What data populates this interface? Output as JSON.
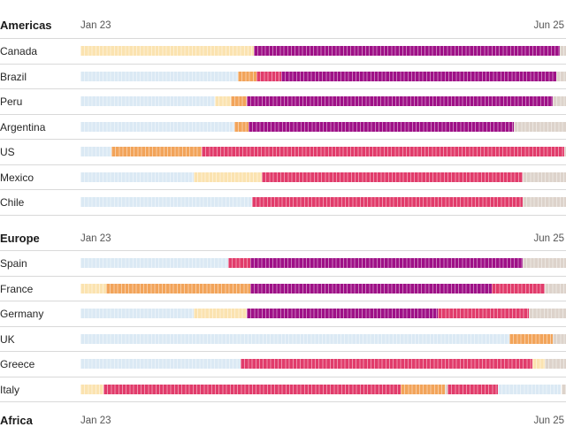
{
  "axis": {
    "start": "Jan 23",
    "end": "Jun 25"
  },
  "colors": {
    "blue": "#dbe9f4",
    "yellow": "#fbe3b0",
    "orange": "#f2a45a",
    "red": "#e13c6b",
    "purple": "#9e1187",
    "grey": "#ddd3cb"
  },
  "chart_data": {
    "type": "timeline",
    "periods": 30,
    "sections": [
      {
        "title": "Americas",
        "rows": [
          {
            "label": "Canada",
            "segments": [
              [
                "yellow",
                10.7
              ],
              [
                "purple",
                18.9
              ],
              [
                "grey",
                0.4
              ]
            ]
          },
          {
            "label": "Brazil",
            "segments": [
              [
                "blue",
                9.7
              ],
              [
                "orange",
                1.2
              ],
              [
                "red",
                1.5
              ],
              [
                "purple",
                17.0
              ],
              [
                "grey",
                0.6
              ]
            ]
          },
          {
            "label": "Peru",
            "segments": [
              [
                "blue",
                8.3
              ],
              [
                "yellow",
                1.0
              ],
              [
                "orange",
                1.0
              ],
              [
                "purple",
                18.9
              ],
              [
                "grey",
                0.8
              ]
            ]
          },
          {
            "label": "Argentina",
            "segments": [
              [
                "blue",
                9.5
              ],
              [
                "orange",
                0.9
              ],
              [
                "purple",
                16.4
              ],
              [
                "grey",
                3.2
              ]
            ]
          },
          {
            "label": "US",
            "segments": [
              [
                "blue",
                1.9
              ],
              [
                "orange",
                5.6
              ],
              [
                "red",
                22.4
              ],
              [
                "grey",
                0.1
              ]
            ]
          },
          {
            "label": "Mexico",
            "segments": [
              [
                "blue",
                7.0
              ],
              [
                "yellow",
                4.2
              ],
              [
                "red",
                16.1
              ],
              [
                "grey",
                2.7
              ]
            ]
          },
          {
            "label": "Chile",
            "segments": [
              [
                "blue",
                10.6
              ],
              [
                "red",
                16.7
              ],
              [
                "grey",
                2.7
              ]
            ]
          }
        ]
      },
      {
        "title": "Europe",
        "rows": [
          {
            "label": "Spain",
            "segments": [
              [
                "blue",
                9.1
              ],
              [
                "red",
                1.4
              ],
              [
                "purple",
                16.8
              ],
              [
                "grey",
                2.7
              ]
            ]
          },
          {
            "label": "France",
            "segments": [
              [
                "yellow",
                1.6
              ],
              [
                "orange",
                8.9
              ],
              [
                "purple",
                14.9
              ],
              [
                "red",
                3.3
              ],
              [
                "grey",
                1.3
              ]
            ]
          },
          {
            "label": "Germany",
            "segments": [
              [
                "blue",
                7.0
              ],
              [
                "yellow",
                3.3
              ],
              [
                "purple",
                11.8
              ],
              [
                "red",
                5.6
              ],
              [
                "grey",
                2.3
              ]
            ]
          },
          {
            "label": "UK",
            "segments": [
              [
                "blue",
                26.5
              ],
              [
                "orange",
                2.7
              ],
              [
                "grey",
                0.8
              ]
            ]
          },
          {
            "label": "Greece",
            "segments": [
              [
                "blue",
                9.9
              ],
              [
                "red",
                18.0
              ],
              [
                "yellow",
                0.8
              ],
              [
                "grey",
                1.3
              ]
            ]
          },
          {
            "label": "Italy",
            "segments": [
              [
                "yellow",
                1.4
              ],
              [
                "red",
                18.4
              ],
              [
                "orange",
                2.7
              ],
              [
                "grey",
                0.2
              ],
              [
                "red",
                3.1
              ],
              [
                "blue",
                3.9
              ],
              [
                "grey",
                0.3
              ]
            ]
          }
        ]
      },
      {
        "title": "Africa",
        "rows": []
      }
    ]
  }
}
